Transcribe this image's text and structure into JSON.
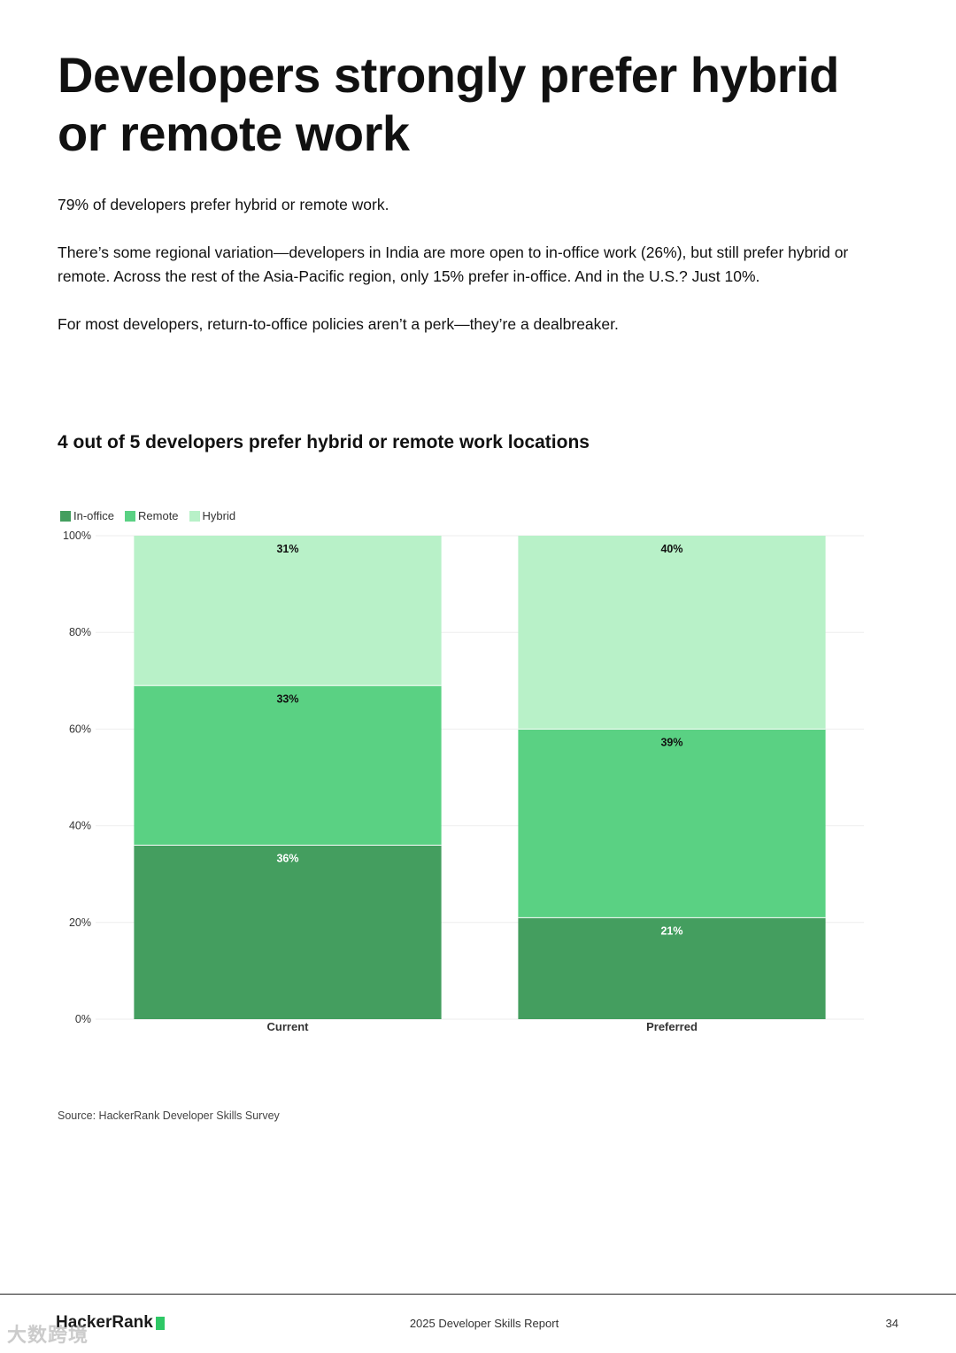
{
  "page": {
    "title": "Developers strongly prefer hybrid or remote work",
    "paragraphs": [
      "79% of developers prefer hybrid or remote work.",
      "There’s some regional variation—developers in India are more open to in-office work (26%), but still prefer hybrid or remote. Across the rest of the Asia-Pacific region, only 15% prefer in-office. And in the U.S.? Just 10%.",
      "For most developers, return-to-office policies aren’t a perk—they’re a dealbreaker."
    ],
    "source": "Source: HackerRank Developer Skills Survey"
  },
  "footer": {
    "brand": "HackerRank",
    "report": "2025 Developer Skills Report",
    "page_number": "34",
    "watermark": "大数跨境"
  },
  "colors": {
    "in_office": "#449e5f",
    "remote": "#5ad183",
    "hybrid": "#b8f1c8",
    "brand_accent": "#2ec866"
  },
  "chart_data": {
    "type": "bar",
    "stacked": true,
    "title": "4 out of 5 developers prefer hybrid or remote work locations",
    "categories": [
      "Current",
      "Preferred"
    ],
    "series": [
      {
        "name": "In-office",
        "values": [
          36,
          21
        ],
        "labels": [
          "36%",
          "21%"
        ]
      },
      {
        "name": "Remote",
        "values": [
          33,
          39
        ],
        "labels": [
          "33%",
          "39%"
        ]
      },
      {
        "name": "Hybrid",
        "values": [
          31,
          40
        ],
        "labels": [
          "31%",
          "40%"
        ]
      }
    ],
    "ylim": [
      0,
      100
    ],
    "yticks": [
      "0%",
      "20%",
      "40%",
      "60%",
      "80%",
      "100%"
    ],
    "legend": "top-left",
    "grid": true
  }
}
